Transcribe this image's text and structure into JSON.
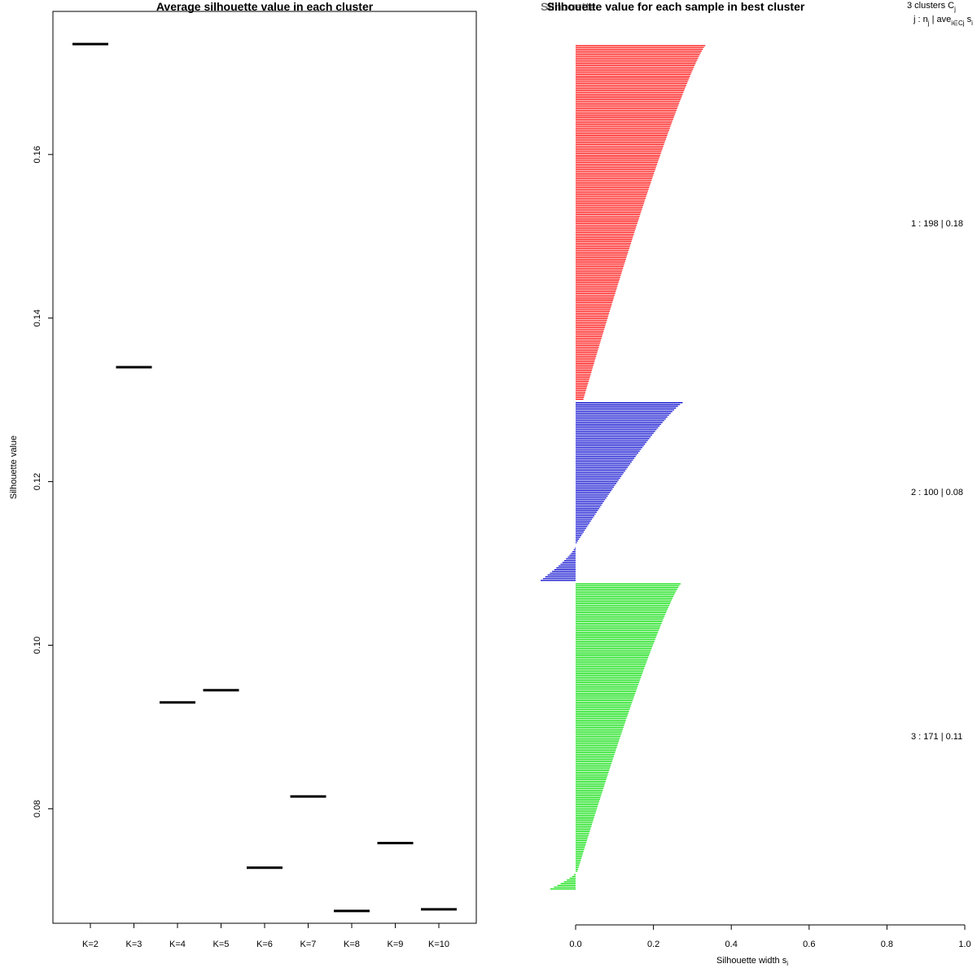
{
  "chart_data": [
    {
      "type": "scatter",
      "marker": "horizontal-segment",
      "title": "Average silhouette value in each cluster",
      "xlabel": "",
      "ylabel": "Silhouette value",
      "categories": [
        "K=2",
        "K=3",
        "K=4",
        "K=5",
        "K=6",
        "K=7",
        "K=8",
        "K=9",
        "K=10"
      ],
      "values": [
        0.1735,
        0.134,
        0.093,
        0.0945,
        0.0728,
        0.0815,
        0.0675,
        0.0758,
        0.0677
      ],
      "ylim": [
        0.066,
        0.1775
      ],
      "yticks": [
        "0.08",
        "0.10",
        "0.12",
        "0.14",
        "0.16"
      ]
    },
    {
      "type": "bar",
      "orientation": "horizontal",
      "title": "Silhouette value for each sample in best cluster",
      "overlay_title_fragment": "Silhouette",
      "xlabel": "Silhouette width s",
      "xlabel_subscript": "i",
      "xlim": [
        0,
        1.0
      ],
      "xticks": [
        "0.0",
        "0.2",
        "0.4",
        "0.6",
        "0.8",
        "1.0"
      ],
      "legend": {
        "header_line1": "3  clusters  C",
        "header_line1_sub": "j",
        "header_line2": "j :  n",
        "header_line2_sub": "j",
        "header_line2_mid": " | ave",
        "header_line2_sub2": "i∈Cj",
        "header_line2_end": "  s",
        "header_line2_end_sub": "i"
      },
      "series": [
        {
          "cluster": "1",
          "label": "1 :  198  |  0.18",
          "n": 198,
          "max": 0.333,
          "min": 0.02,
          "neg_count": 0,
          "neg_min": 0,
          "color": "#ff0000"
        },
        {
          "cluster": "2",
          "label": "2 :  100  |  0.08",
          "n": 100,
          "max": 0.275,
          "min": 0.0,
          "neg_count": 20,
          "neg_min": -0.09,
          "color": "#0000cd"
        },
        {
          "cluster": "3",
          "label": "3 :  171  |  0.11",
          "n": 171,
          "max": 0.27,
          "min": 0.005,
          "neg_count": 10,
          "neg_min": -0.065,
          "color": "#00dd00"
        }
      ]
    }
  ]
}
